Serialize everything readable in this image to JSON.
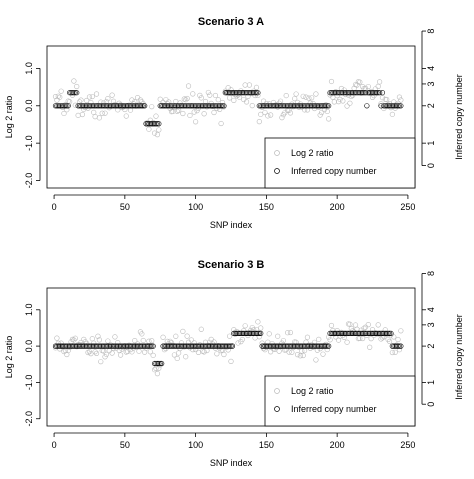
{
  "chart_data": [
    {
      "type": "scatter",
      "title": "Scenario 3 A",
      "xlabel": "SNP index",
      "ylabel": "Log 2 ratio",
      "y2label": "Inferred copy number",
      "xlim": [
        -5,
        255
      ],
      "ylim": [
        -2.2,
        1.6
      ],
      "xticks": [
        0,
        50,
        100,
        150,
        200,
        250
      ],
      "yticks": [
        -2.0,
        -1.0,
        0.0,
        1.0
      ],
      "ytick_labels": [
        "-2.0",
        "-1.0",
        "0.0",
        "1.0"
      ],
      "y2ticks": [
        0,
        1,
        2,
        3,
        4,
        8
      ],
      "y2tick_labels": [
        "0",
        "1",
        "2",
        "3",
        "4",
        "8"
      ],
      "legend": {
        "position": "bottom-right",
        "entries": [
          "Log 2 ratio",
          "Inferred copy number"
        ]
      },
      "segments": [
        {
          "x0": 1,
          "x1": 10,
          "value": 0.0
        },
        {
          "x0": 11,
          "x1": 16,
          "value": 0.35
        },
        {
          "x0": 17,
          "x1": 64,
          "value": 0.0
        },
        {
          "x0": 65,
          "x1": 74,
          "value": -0.48
        },
        {
          "x0": 75,
          "x1": 120,
          "value": 0.0
        },
        {
          "x0": 121,
          "x1": 144,
          "value": 0.35
        },
        {
          "x0": 145,
          "x1": 194,
          "value": 0.0
        },
        {
          "x0": 195,
          "x1": 220,
          "value": 0.35
        },
        {
          "x0": 221,
          "x1": 221,
          "value": 0.0
        },
        {
          "x0": 222,
          "x1": 230,
          "value": 0.35
        },
        {
          "x0": 231,
          "x1": 231,
          "value": 0.0
        },
        {
          "x0": 232,
          "x1": 232,
          "value": 0.35
        },
        {
          "x0": 233,
          "x1": 245,
          "value": 0.0
        }
      ],
      "noise_sd": 0.17,
      "seed": 7
    },
    {
      "type": "scatter",
      "title": "Scenario 3 B",
      "xlabel": "SNP index",
      "ylabel": "Log 2 ratio",
      "y2label": "Inferred copy number",
      "xlim": [
        -5,
        255
      ],
      "ylim": [
        -2.2,
        1.6
      ],
      "xticks": [
        0,
        50,
        100,
        150,
        200,
        250
      ],
      "yticks": [
        -2.0,
        -1.0,
        0.0,
        1.0
      ],
      "ytick_labels": [
        "-2.0",
        "-1.0",
        "0.0",
        "1.0"
      ],
      "y2ticks": [
        0,
        1,
        2,
        3,
        4,
        8
      ],
      "y2tick_labels": [
        "0",
        "1",
        "2",
        "3",
        "4",
        "8"
      ],
      "legend": {
        "position": "bottom-right",
        "entries": [
          "Log 2 ratio",
          "Inferred copy number"
        ]
      },
      "segments": [
        {
          "x0": 1,
          "x1": 70,
          "value": 0.0
        },
        {
          "x0": 71,
          "x1": 76,
          "value": -0.48
        },
        {
          "x0": 77,
          "x1": 126,
          "value": 0.0
        },
        {
          "x0": 127,
          "x1": 146,
          "value": 0.35
        },
        {
          "x0": 147,
          "x1": 194,
          "value": 0.0
        },
        {
          "x0": 195,
          "x1": 238,
          "value": 0.35
        },
        {
          "x0": 239,
          "x1": 245,
          "value": 0.0
        }
      ],
      "noise_sd": 0.17,
      "seed": 11
    }
  ]
}
